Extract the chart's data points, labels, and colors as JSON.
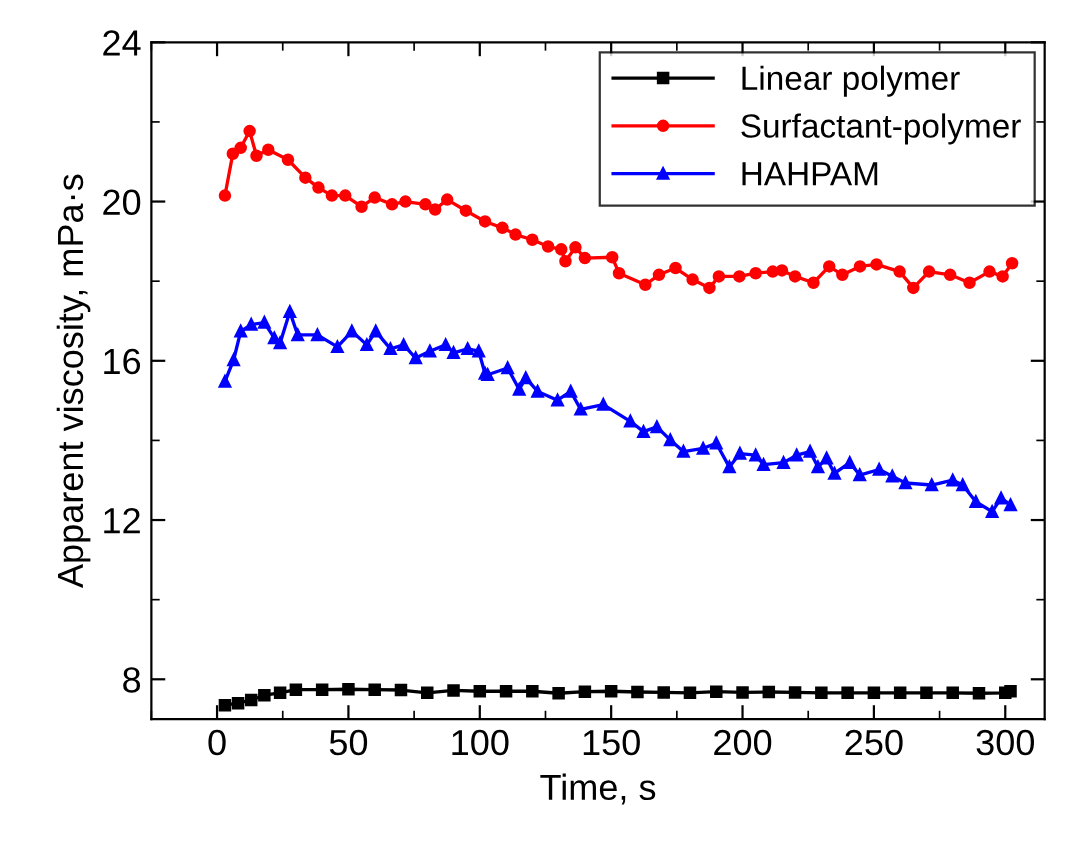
{
  "chart_data": {
    "type": "line",
    "xlabel": "Time, s",
    "ylabel": "Apparent viscosity, mPa·s",
    "xlim": [
      -25,
      315
    ],
    "xticks": [
      0,
      50,
      100,
      150,
      200,
      250,
      300
    ],
    "ylim": [
      7,
      24
    ],
    "yticks": [
      8,
      12,
      16,
      20,
      24
    ],
    "grid": false,
    "legend": "top right",
    "line_style": "solid",
    "series": [
      {
        "name": "Linear polymer",
        "color": "#000000",
        "marker": "square",
        "x": [
          3,
          8,
          13,
          18,
          24,
          30,
          40,
          50,
          60,
          70,
          80,
          90,
          100,
          110,
          120,
          130,
          140,
          150,
          160,
          170,
          180,
          190,
          200,
          210,
          220,
          230,
          240,
          250,
          260,
          270,
          280,
          290,
          300,
          302
        ],
        "values": [
          7.35,
          7.4,
          7.48,
          7.6,
          7.66,
          7.74,
          7.74,
          7.75,
          7.74,
          7.73,
          7.66,
          7.72,
          7.7,
          7.7,
          7.7,
          7.65,
          7.69,
          7.7,
          7.68,
          7.67,
          7.66,
          7.69,
          7.67,
          7.68,
          7.67,
          7.66,
          7.66,
          7.66,
          7.66,
          7.66,
          7.66,
          7.65,
          7.66,
          7.7
        ]
      },
      {
        "name": "Surfactant-polymer",
        "color": "#ff0000",
        "marker": "circle",
        "x": [
          3,
          6,
          9,
          12.4,
          15,
          19.5,
          27,
          33.6,
          38.6,
          43.7,
          48.8,
          55,
          60,
          66.6,
          71.7,
          79.3,
          83,
          87.6,
          94.7,
          102,
          108.6,
          113.6,
          120,
          126,
          131,
          132.6,
          136.4,
          140,
          150.4,
          153,
          163,
          168.2,
          174.5,
          181,
          187.4,
          191,
          198.8,
          205,
          211.5,
          215,
          220,
          227,
          233,
          238,
          244.7,
          251,
          259.8,
          265,
          271,
          279,
          286.4,
          294,
          299,
          302.6
        ],
        "values": [
          20.15,
          21.2,
          21.35,
          21.77,
          21.15,
          21.3,
          21.05,
          20.6,
          20.35,
          20.15,
          20.15,
          19.87,
          20.1,
          19.93,
          20.0,
          19.93,
          19.8,
          20.05,
          19.77,
          19.5,
          19.34,
          19.17,
          19.04,
          18.87,
          18.8,
          18.5,
          18.85,
          18.58,
          18.6,
          18.2,
          17.91,
          18.16,
          18.33,
          18.04,
          17.83,
          18.12,
          18.12,
          18.2,
          18.24,
          18.27,
          18.12,
          17.96,
          18.37,
          18.16,
          18.37,
          18.42,
          18.24,
          17.83,
          18.24,
          18.16,
          17.96,
          18.24,
          18.12,
          18.45
        ]
      },
      {
        "name": "HAHPAM",
        "color": "#0000ff",
        "marker": "triangle",
        "x": [
          3,
          6.3,
          9,
          13,
          18,
          21.8,
          24,
          27.7,
          30.7,
          38.2,
          45.8,
          51.3,
          57,
          60.4,
          66,
          71,
          75.6,
          81,
          87,
          90,
          95.4,
          99.6,
          102,
          103,
          110.6,
          115,
          117.5,
          122,
          129.6,
          134.6,
          138.4,
          147,
          157.3,
          162.3,
          167.4,
          172.5,
          177.5,
          185,
          190,
          195,
          199,
          205,
          208,
          215.6,
          220.6,
          225.7,
          228.7,
          232,
          235,
          240.8,
          244.6,
          252,
          257,
          262,
          272,
          280,
          283.8,
          288.8,
          295,
          298.4,
          302
        ],
        "values": [
          15.48,
          16.02,
          16.74,
          16.91,
          16.96,
          16.57,
          16.45,
          17.23,
          16.65,
          16.65,
          16.35,
          16.74,
          16.4,
          16.74,
          16.3,
          16.4,
          16.07,
          16.24,
          16.4,
          16.2,
          16.3,
          16.24,
          15.68,
          15.65,
          15.82,
          15.28,
          15.57,
          15.23,
          15.01,
          15.23,
          14.78,
          14.9,
          14.48,
          14.22,
          14.34,
          14.01,
          13.72,
          13.8,
          13.93,
          13.33,
          13.67,
          13.63,
          13.39,
          13.44,
          13.63,
          13.72,
          13.33,
          13.55,
          13.17,
          13.44,
          13.13,
          13.27,
          13.1,
          12.93,
          12.88,
          13.0,
          12.88,
          12.46,
          12.21,
          12.55,
          12.38
        ]
      }
    ]
  }
}
